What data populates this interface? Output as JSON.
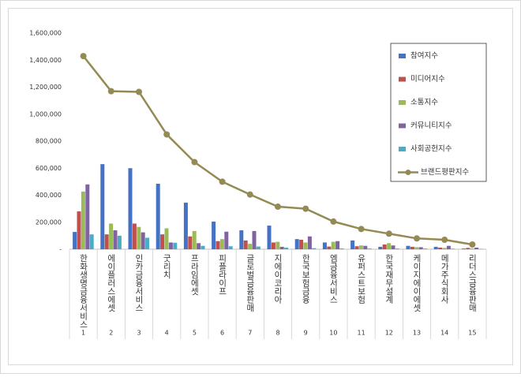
{
  "chart_data": {
    "type": "bar-line",
    "categories": [
      "한화생명금융서비스",
      "에이플러스에셋",
      "인카금융서비스",
      "굿리치",
      "프라임에셋",
      "피플라이프",
      "글로벌금융판매",
      "지에이코리아",
      "한국보험금융",
      "엠금융서비스",
      "유퍼스트보험",
      "한국재무설계",
      "케이지에이에셋",
      "메가주식회사",
      "리더스금융판매"
    ],
    "ranks": [
      1,
      2,
      3,
      4,
      5,
      6,
      7,
      8,
      9,
      10,
      11,
      12,
      13,
      14,
      15
    ],
    "series": [
      {
        "name": "참여지수",
        "type": "bar",
        "color": "#4472c4",
        "values": [
          128000,
          630000,
          600000,
          485000,
          345000,
          205000,
          140000,
          175000,
          75000,
          50000,
          65000,
          18000,
          25000,
          18000,
          5000
        ]
      },
      {
        "name": "미디어지수",
        "type": "bar",
        "color": "#c0504d",
        "values": [
          280000,
          110000,
          190000,
          110000,
          95000,
          60000,
          65000,
          50000,
          70000,
          20000,
          22000,
          35000,
          18000,
          12000,
          10000
        ]
      },
      {
        "name": "소통지수",
        "type": "bar",
        "color": "#9bbb59",
        "values": [
          427000,
          190000,
          165000,
          155000,
          135000,
          75000,
          40000,
          55000,
          50000,
          55000,
          28000,
          45000,
          15000,
          10000,
          6000
        ]
      },
      {
        "name": "커뮤니티지수",
        "type": "bar",
        "color": "#8064a2",
        "values": [
          480000,
          140000,
          125000,
          50000,
          45000,
          130000,
          135000,
          18000,
          95000,
          60000,
          25000,
          28000,
          15000,
          25000,
          12000
        ]
      },
      {
        "name": "사회공헌지수",
        "type": "bar",
        "color": "#4bacc6",
        "values": [
          110000,
          100000,
          85000,
          48000,
          25000,
          22000,
          20000,
          12000,
          8000,
          6000,
          5000,
          5000,
          5000,
          4000,
          3000
        ]
      },
      {
        "name": "브랜드평판지수",
        "type": "line",
        "color": "#948a54",
        "values": [
          1430000,
          1170000,
          1165000,
          850000,
          645000,
          500000,
          405000,
          315000,
          300000,
          205000,
          150000,
          115000,
          80000,
          70000,
          35000
        ]
      }
    ],
    "ylim": [
      0,
      1600000
    ],
    "yticks": [
      {
        "value": 0,
        "label": "-"
      },
      {
        "value": 200000,
        "label": "200,000"
      },
      {
        "value": 400000,
        "label": "400,000"
      },
      {
        "value": 600000,
        "label": "600,000"
      },
      {
        "value": 800000,
        "label": "800,000"
      },
      {
        "value": 1000000,
        "label": "1,000,000"
      },
      {
        "value": 1200000,
        "label": "1,200,000"
      },
      {
        "value": 1400000,
        "label": "1,400,000"
      },
      {
        "value": 1600000,
        "label": "1,600,000"
      }
    ],
    "grid": false,
    "legend": "upper right"
  }
}
